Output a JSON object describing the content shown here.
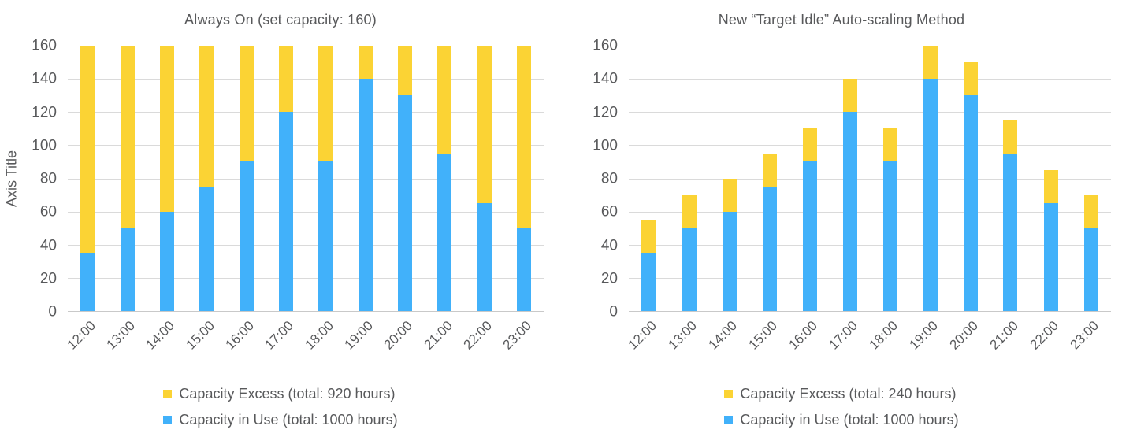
{
  "colors": {
    "excess": "#FBD334",
    "in_use": "#41B1FA",
    "text": "#58595B",
    "gridline": "#DADADA",
    "axis_line": "#C9C9C9",
    "background": "#FFFFFF"
  },
  "chart_data": [
    {
      "type": "bar",
      "stacked": true,
      "title": "Always On (set capacity: 160)",
      "ylabel": "Axis Title",
      "xlabel": "",
      "categories": [
        "12:00",
        "13:00",
        "14:00",
        "15:00",
        "16:00",
        "17:00",
        "18:00",
        "19:00",
        "20:00",
        "21:00",
        "22:00",
        "23:00"
      ],
      "series": [
        {
          "name": "Capacity in Use (total: 1000 hours)",
          "color_key": "in_use",
          "values": [
            35,
            50,
            60,
            75,
            90,
            120,
            90,
            140,
            130,
            95,
            65,
            50
          ]
        },
        {
          "name": "Capacity Excess (total: 920 hours)",
          "color_key": "excess",
          "values": [
            125,
            110,
            100,
            85,
            70,
            40,
            70,
            20,
            30,
            65,
            95,
            110
          ]
        }
      ],
      "stack_totals": [
        160,
        160,
        160,
        160,
        160,
        160,
        160,
        160,
        160,
        160,
        160,
        160
      ],
      "ylim": [
        0,
        160
      ],
      "yticks": [
        0,
        20,
        40,
        60,
        80,
        100,
        120,
        140,
        160
      ],
      "grid": true,
      "legend_position": "bottom",
      "legend": [
        {
          "label": "Capacity Excess (total: 920 hours)",
          "color_key": "excess"
        },
        {
          "label": "Capacity in Use (total: 1000 hours)",
          "color_key": "in_use"
        }
      ]
    },
    {
      "type": "bar",
      "stacked": true,
      "title": "New “Target Idle” Auto-scaling Method",
      "ylabel": "",
      "xlabel": "",
      "categories": [
        "12:00",
        "13:00",
        "14:00",
        "15:00",
        "16:00",
        "17:00",
        "18:00",
        "19:00",
        "20:00",
        "21:00",
        "22:00",
        "23:00"
      ],
      "series": [
        {
          "name": "Capacity in Use (total: 1000 hours)",
          "color_key": "in_use",
          "values": [
            35,
            50,
            60,
            75,
            90,
            120,
            90,
            140,
            130,
            95,
            65,
            50
          ]
        },
        {
          "name": "Capacity Excess (total: 240 hours)",
          "color_key": "excess",
          "values": [
            20,
            20,
            20,
            20,
            20,
            20,
            20,
            20,
            20,
            20,
            20,
            20
          ]
        }
      ],
      "stack_totals": [
        55,
        70,
        80,
        95,
        110,
        140,
        110,
        160,
        150,
        115,
        85,
        70
      ],
      "ylim": [
        0,
        160
      ],
      "yticks": [
        0,
        20,
        40,
        60,
        80,
        100,
        120,
        140,
        160
      ],
      "grid": true,
      "legend_position": "bottom",
      "legend": [
        {
          "label": "Capacity Excess (total: 240 hours)",
          "color_key": "excess"
        },
        {
          "label": "Capacity in Use (total: 1000 hours)",
          "color_key": "in_use"
        }
      ]
    }
  ]
}
